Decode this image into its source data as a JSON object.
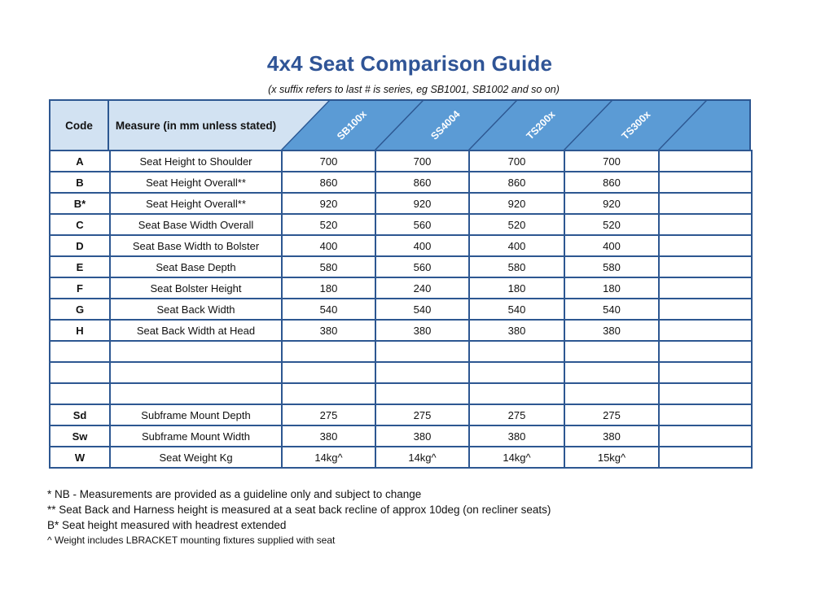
{
  "title": "4x4 Seat Comparison Guide",
  "subtitle": "(x suffix refers to last # is series, eg SB1001, SB1002 and so on)",
  "colors": {
    "title_blue": "#2f5496",
    "border_navy": "#2d5791",
    "header_light_blue": "#d2e2f2",
    "header_dark_blue": "#5b9bd5"
  },
  "table": {
    "code_header": "Code",
    "measure_header": "Measure (in mm unless stated)",
    "product_columns": [
      "SB100x",
      "SS4004",
      "TS200x",
      "TS300x",
      ""
    ],
    "rows": [
      {
        "code": "A",
        "measure": "Seat Height to Shoulder",
        "values": [
          "700",
          "700",
          "700",
          "700",
          ""
        ]
      },
      {
        "code": "B",
        "measure": "Seat Height Overall**",
        "values": [
          "860",
          "860",
          "860",
          "860",
          ""
        ]
      },
      {
        "code": "B*",
        "measure": "Seat Height Overall**",
        "values": [
          "920",
          "920",
          "920",
          "920",
          ""
        ]
      },
      {
        "code": "C",
        "measure": "Seat Base Width Overall",
        "values": [
          "520",
          "560",
          "520",
          "520",
          ""
        ]
      },
      {
        "code": "D",
        "measure": "Seat Base Width to Bolster",
        "values": [
          "400",
          "400",
          "400",
          "400",
          ""
        ]
      },
      {
        "code": "E",
        "measure": "Seat Base Depth",
        "values": [
          "580",
          "560",
          "580",
          "580",
          ""
        ]
      },
      {
        "code": "F",
        "measure": "Seat Bolster Height",
        "values": [
          "180",
          "240",
          "180",
          "180",
          ""
        ]
      },
      {
        "code": "G",
        "measure": "Seat Back Width",
        "values": [
          "540",
          "540",
          "540",
          "540",
          ""
        ]
      },
      {
        "code": "H",
        "measure": "Seat Back Width at Head",
        "values": [
          "380",
          "380",
          "380",
          "380",
          ""
        ]
      },
      {
        "code": "",
        "measure": "",
        "values": [
          "",
          "",
          "",
          "",
          ""
        ]
      },
      {
        "code": "",
        "measure": "",
        "values": [
          "",
          "",
          "",
          "",
          ""
        ]
      },
      {
        "code": "",
        "measure": "",
        "values": [
          "",
          "",
          "",
          "",
          ""
        ]
      },
      {
        "code": "Sd",
        "measure": "Subframe Mount Depth",
        "values": [
          "275",
          "275",
          "275",
          "275",
          ""
        ]
      },
      {
        "code": "Sw",
        "measure": "Subframe Mount Width",
        "values": [
          "380",
          "380",
          "380",
          "380",
          ""
        ]
      },
      {
        "code": "W",
        "measure": "Seat Weight Kg",
        "values": [
          "14kg^",
          "14kg^",
          "14kg^",
          "15kg^",
          ""
        ]
      }
    ]
  },
  "footnotes": [
    "* NB - Measurements are provided as a guideline only and subject to change",
    "** Seat Back and Harness height is measured at a seat back recline of approx 10deg (on recliner seats)",
    "B* Seat height measured with headrest extended",
    "^ Weight includes LBRACKET mounting fixtures supplied with seat"
  ]
}
